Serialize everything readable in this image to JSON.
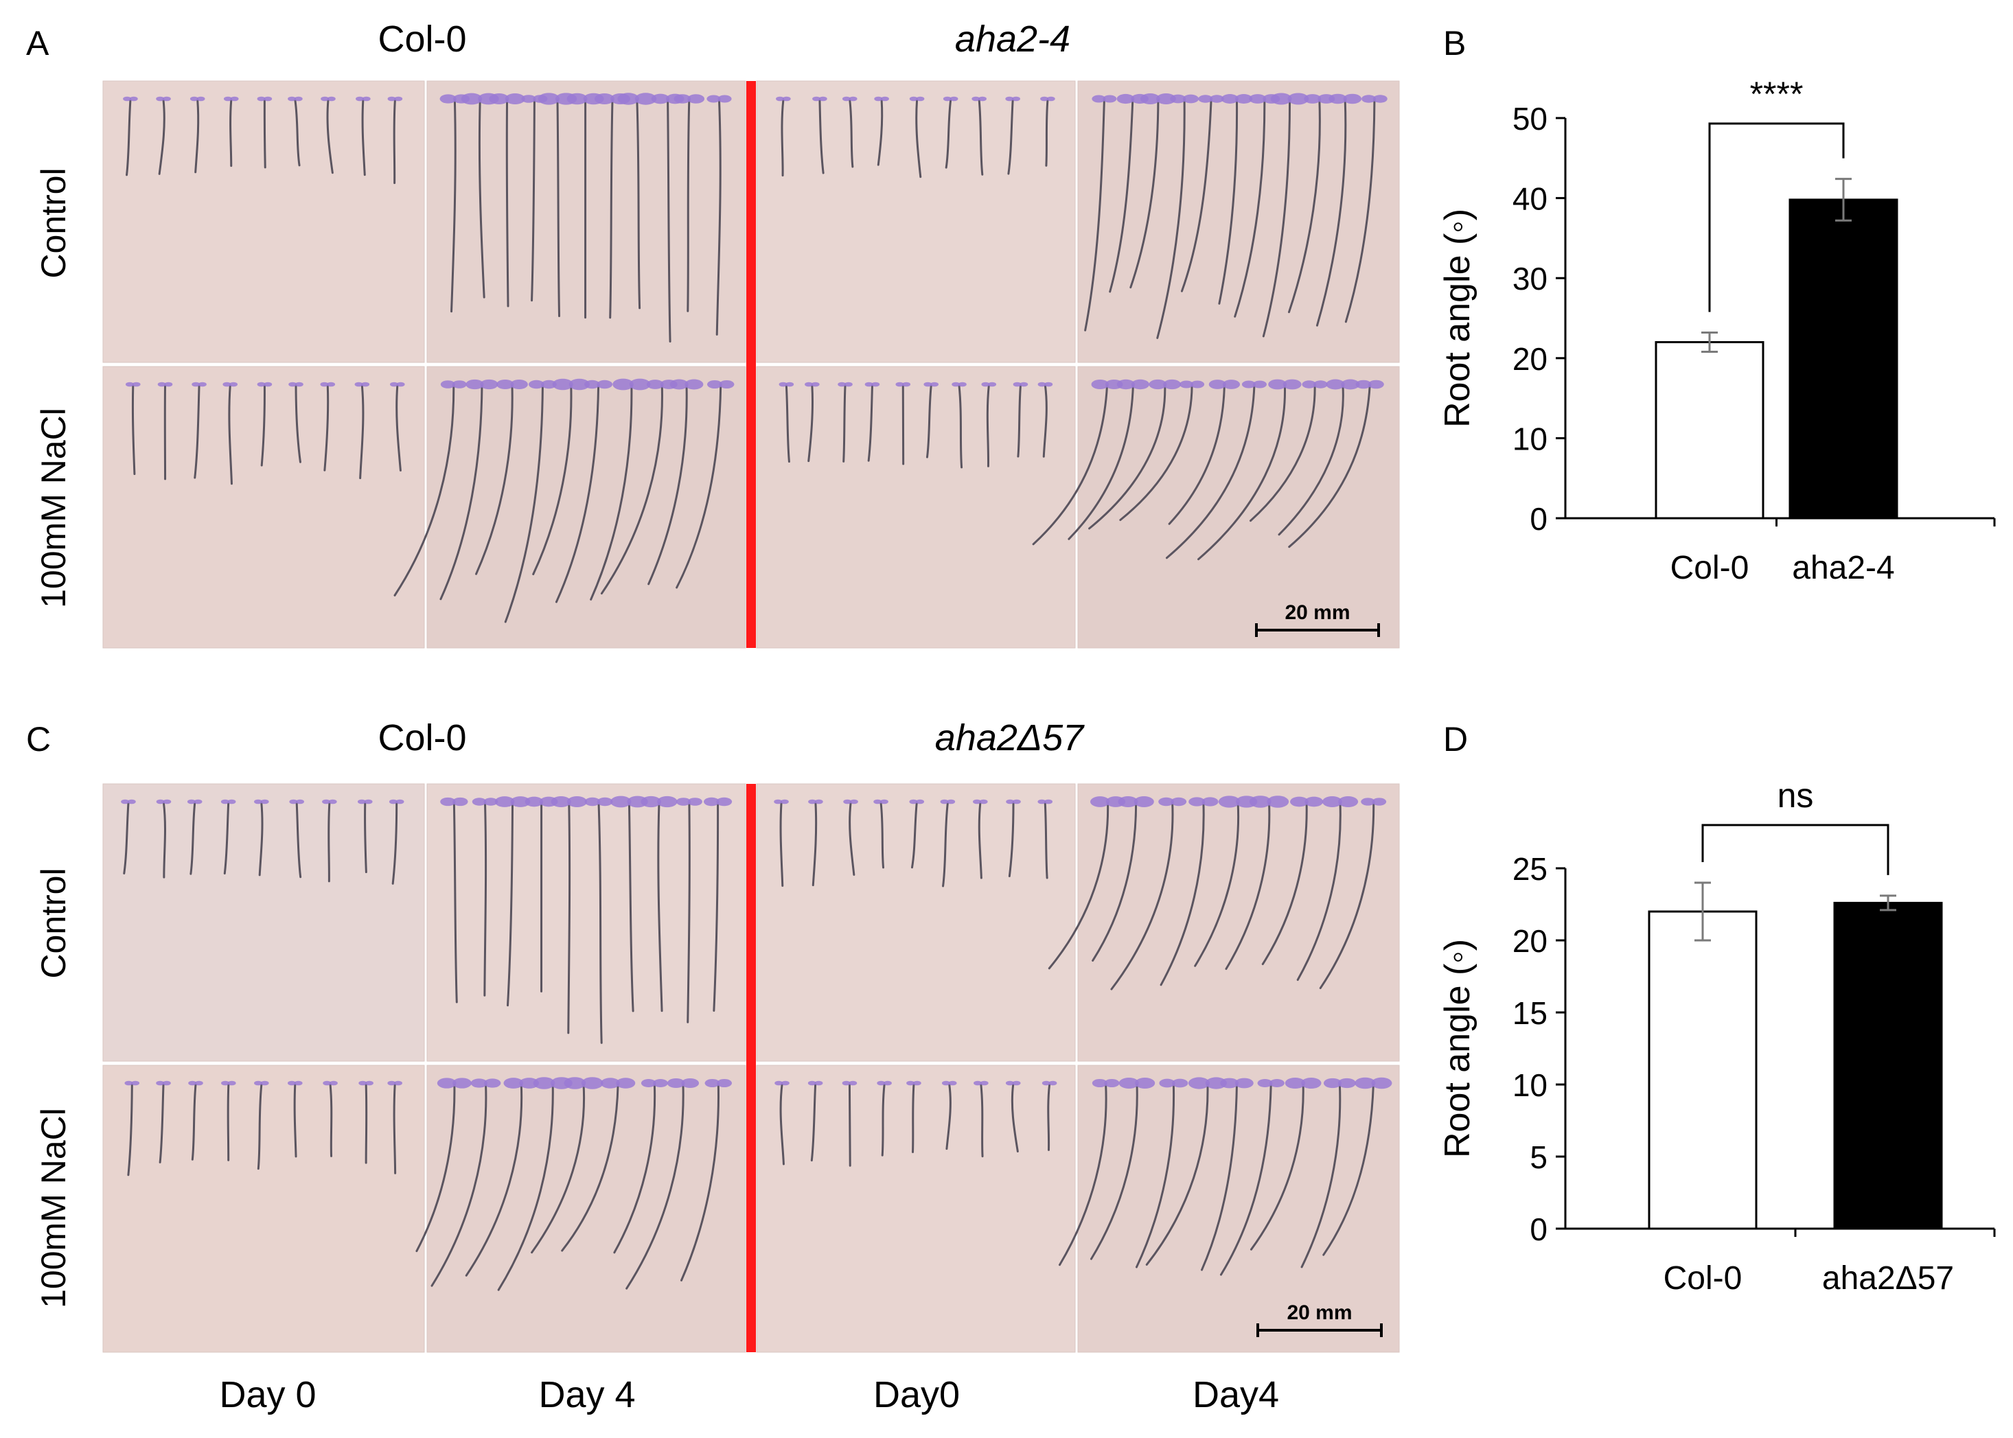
{
  "panels": {
    "A": {
      "letter": "A",
      "col_titles": [
        "Col-0",
        "aha2-4"
      ],
      "row_labels": [
        "Control",
        "100mM NaCl"
      ],
      "scale_bar": "20 mm"
    },
    "B": {
      "letter": "B"
    },
    "C": {
      "letter": "C",
      "col_titles": [
        "Col-0",
        "aha2Δ57"
      ],
      "row_labels": [
        "Control",
        "100mM NaCl"
      ],
      "scale_bar": "20 mm"
    },
    "D": {
      "letter": "D"
    }
  },
  "day_labels": [
    "Day 0",
    "Day 4",
    "Day0",
    "Day4"
  ],
  "colors": {
    "plate_bg": "#e7d4d0",
    "divider_red": "#ff1a1a",
    "root": "#5b5560",
    "leaf": "#9a7ad4"
  },
  "chart_data": [
    {
      "type": "bar",
      "panel": "B",
      "categories": [
        "Col-0",
        "aha2-4"
      ],
      "values": [
        22,
        39.8
      ],
      "errors": [
        1.2,
        2.6
      ],
      "bar_colors": [
        "#ffffff",
        "#000000"
      ],
      "ylabel": "Root angle (◦)",
      "ylim": [
        0,
        50
      ],
      "yticks": [
        "0",
        "10",
        "20",
        "30",
        "40",
        "50"
      ],
      "significance": "****"
    },
    {
      "type": "bar",
      "panel": "D",
      "categories": [
        "Col-0",
        "aha2Δ57"
      ],
      "values": [
        22,
        22.6
      ],
      "errors": [
        2.0,
        0.5
      ],
      "bar_colors": [
        "#ffffff",
        "#000000"
      ],
      "ylabel": "Root angle (◦)",
      "ylim": [
        0,
        25
      ],
      "yticks": [
        "0",
        "5",
        "10",
        "15",
        "20",
        "25"
      ],
      "significance": "ns"
    }
  ]
}
